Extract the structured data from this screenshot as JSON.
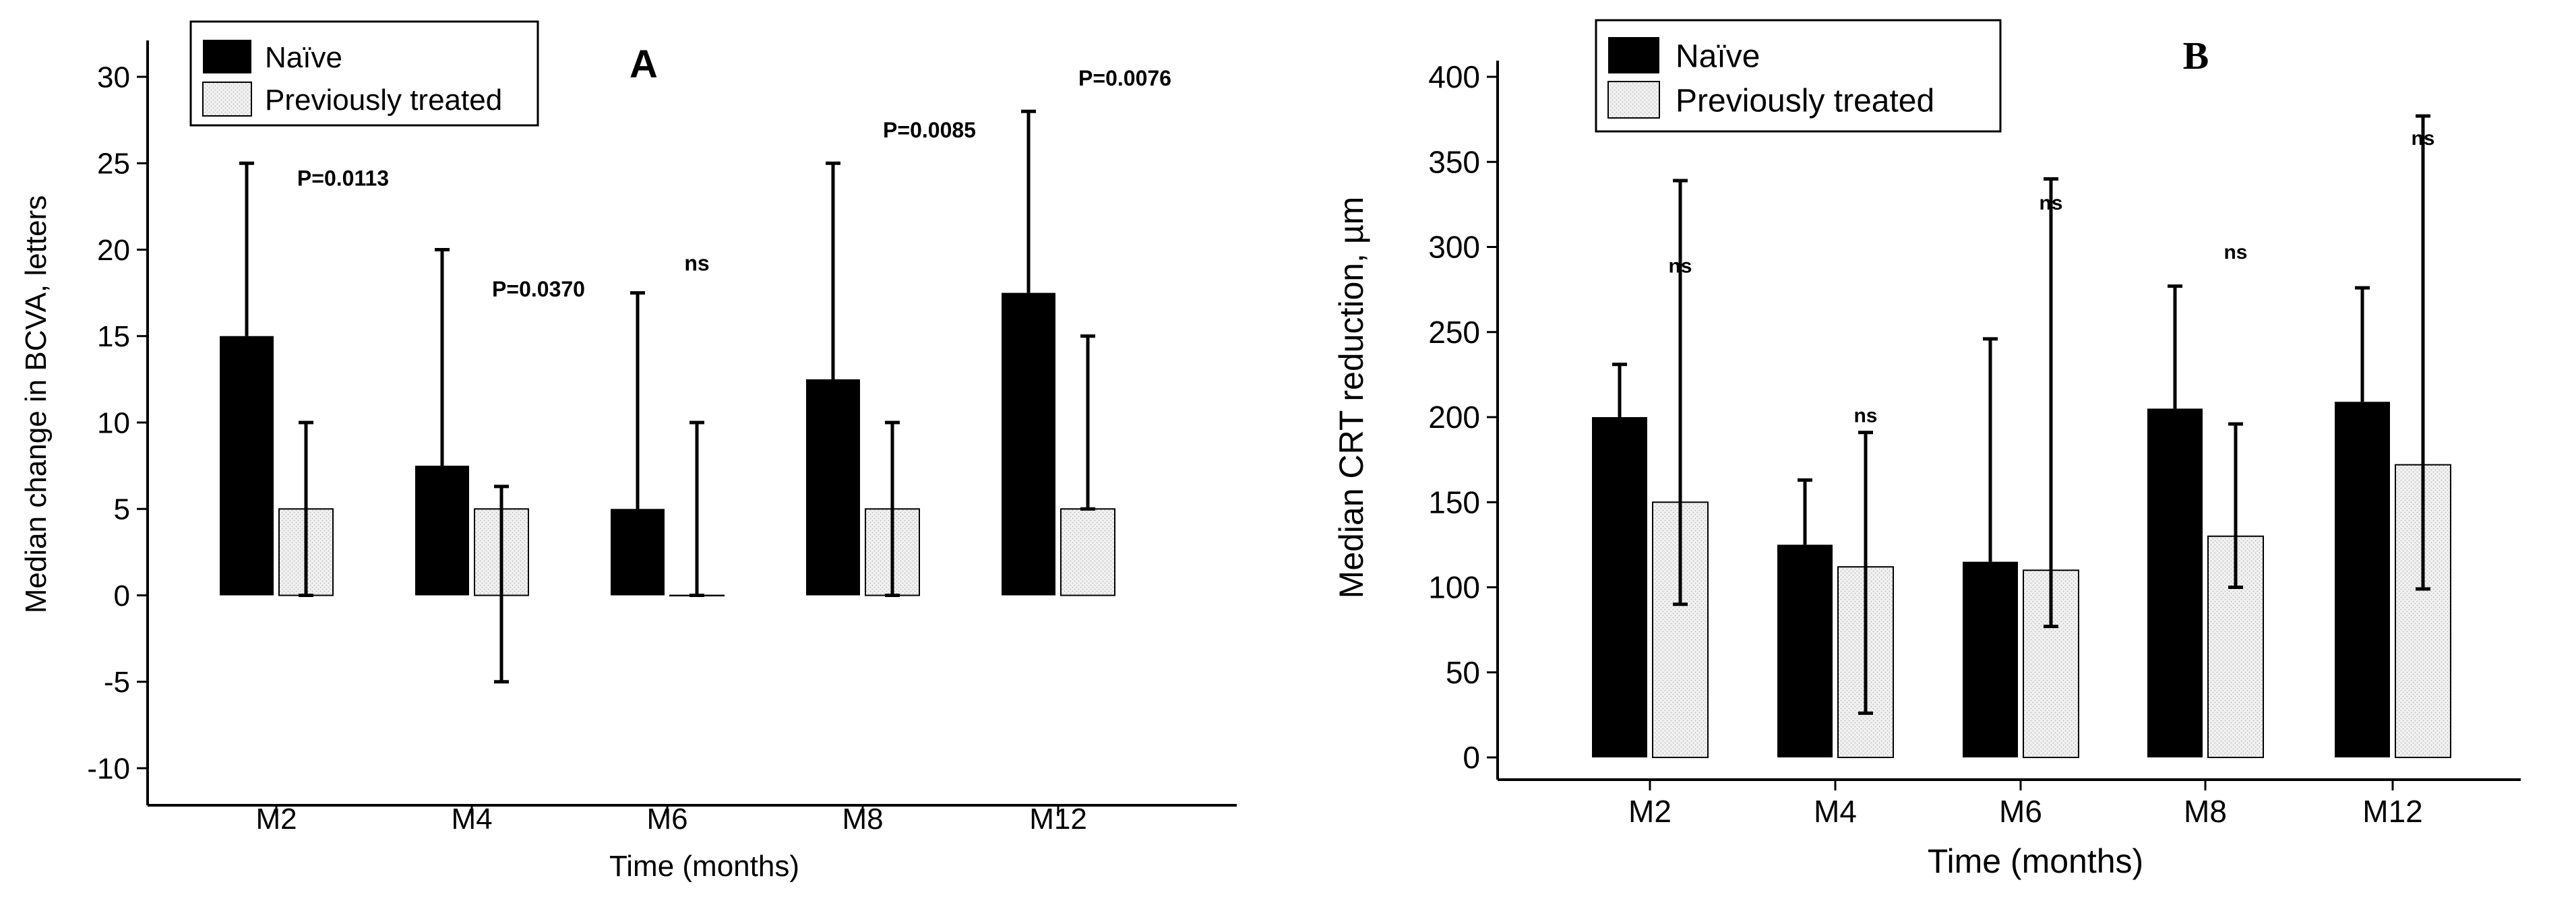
{
  "colors": {
    "naive": "#000000",
    "treated": "#ececec",
    "axis": "#000000"
  },
  "chart_data": [
    {
      "id": "A",
      "type": "bar",
      "panel_label": "A",
      "title": "",
      "xlabel": "Time (months)",
      "ylabel": "Median change in BCVA, letters",
      "ylim": [
        -10,
        30
      ],
      "yticks": [
        -10,
        -5,
        0,
        5,
        10,
        15,
        20,
        25,
        30
      ],
      "ytick_labels": [
        "-10",
        "-5",
        "0",
        "5",
        "10",
        "15",
        "20",
        "25",
        "30"
      ],
      "categories": [
        "M2",
        "M4",
        "M6",
        "M8",
        "M12"
      ],
      "legend": [
        "Naïve",
        "Previously treated"
      ],
      "legend_position": "top-left",
      "series": [
        {
          "name": "Naïve",
          "values": [
            15,
            7.5,
            5,
            12.5,
            17.5
          ],
          "err_high": [
            25,
            20,
            17.5,
            25,
            28
          ],
          "err_low": [
            null,
            null,
            null,
            null,
            null
          ]
        },
        {
          "name": "Previously treated",
          "values": [
            5,
            5,
            0,
            5,
            5
          ],
          "err_high": [
            10,
            6.3,
            10,
            10,
            15
          ],
          "err_low": [
            0,
            -5,
            0,
            0,
            5
          ]
        }
      ],
      "annotations": [
        {
          "category": "M2",
          "text": "P=0.0113",
          "y": 23.7
        },
        {
          "category": "M4",
          "text": "P=0.0370",
          "y": 17.3
        },
        {
          "category": "M6",
          "text": "ns",
          "y": 18.8
        },
        {
          "category": "M8",
          "text": "P=0.0085",
          "y": 26.5
        },
        {
          "category": "M12",
          "text": "P=0.0076",
          "y": 29.5
        }
      ]
    },
    {
      "id": "B",
      "type": "bar",
      "panel_label": "B",
      "title": "",
      "xlabel": "Time (months)",
      "ylabel": "Median CRT reduction, µm",
      "ylim": [
        0,
        400
      ],
      "yticks": [
        0,
        50,
        100,
        150,
        200,
        250,
        300,
        350,
        400
      ],
      "ytick_labels": [
        "0",
        "50",
        "100",
        "150",
        "200",
        "250",
        "300",
        "350",
        "400"
      ],
      "categories": [
        "M2",
        "M4",
        "M6",
        "M8",
        "M12"
      ],
      "legend": [
        "Naïve",
        "Previously treated"
      ],
      "legend_position": "top-left",
      "series": [
        {
          "name": "Naïve",
          "values": [
            200,
            125,
            115,
            205,
            209
          ],
          "err_high": [
            231,
            163,
            246,
            277,
            276
          ],
          "err_low": [
            null,
            null,
            null,
            null,
            null
          ]
        },
        {
          "name": "Previously treated",
          "values": [
            150,
            112,
            110,
            130,
            172
          ],
          "err_high": [
            339,
            191,
            340,
            196,
            377
          ],
          "err_low": [
            90,
            26,
            77,
            100,
            99
          ]
        }
      ],
      "annotations": [
        {
          "category": "M2",
          "text": "ns",
          "y": 285
        },
        {
          "category": "M4",
          "text": "ns",
          "y": 197
        },
        {
          "category": "M6",
          "text": "ns",
          "y": 322
        },
        {
          "category": "M8",
          "text": "ns",
          "y": 293
        },
        {
          "category": "M12",
          "text": "ns",
          "y": 360
        }
      ]
    }
  ]
}
